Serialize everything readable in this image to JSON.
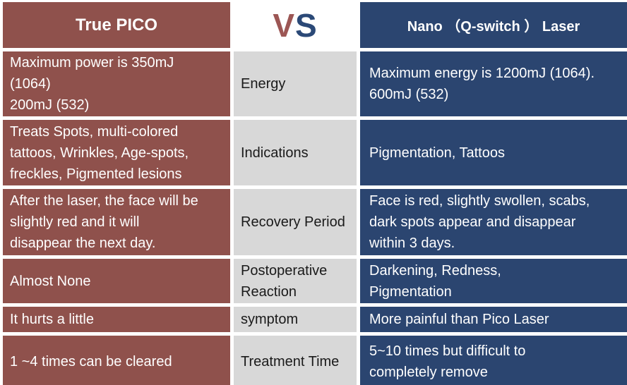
{
  "table": {
    "colors": {
      "pico_column_bg": "#8F514C",
      "nano_column_bg": "#2B4570",
      "category_column_bg": "#D8D8D8",
      "vs_v_color": "#9C5654",
      "vs_s_color": "#2B4977",
      "header_text": "#FFFFFF",
      "body_left_right_text": "#FFFFFF",
      "category_text": "#1A1A1A"
    },
    "header": {
      "left_title": "True PICO",
      "vs_letter_1": "V",
      "vs_letter_2": "S",
      "right_title": "Nano （Q-switch ） Laser"
    },
    "rows": [
      {
        "category": "Energy",
        "pico": "Maximum power is 350mJ\n(1064)\n200mJ (532)",
        "nano": "Maximum energy is 1200mJ (1064).\n600mJ (532)"
      },
      {
        "category": "Indications",
        "pico": "Treats Spots, multi-colored\ntattoos, Wrinkles,  Age-spots,\nfreckles, Pigmented lesions",
        "nano": "Pigmentation, Tattoos"
      },
      {
        "category": "Recovery Period",
        "pico": "After the laser, the face will be\nslightly red and it will\ndisappear the next day.",
        "nano": "Face is red, slightly swollen, scabs,\ndark spots appear and disappear\nwithin 3 days."
      },
      {
        "category": "Postoperative\nReaction",
        "pico": "Almost None",
        "nano": "Darkening, Redness,\nPigmentation"
      },
      {
        "category": "symptom",
        "pico": "It hurts a little",
        "nano": "More painful than Pico Laser"
      },
      {
        "category": "Treatment Time",
        "pico": "1 ~4 times can be cleared",
        "nano": "5~10 times but difficult to\ncompletely remove"
      }
    ]
  }
}
